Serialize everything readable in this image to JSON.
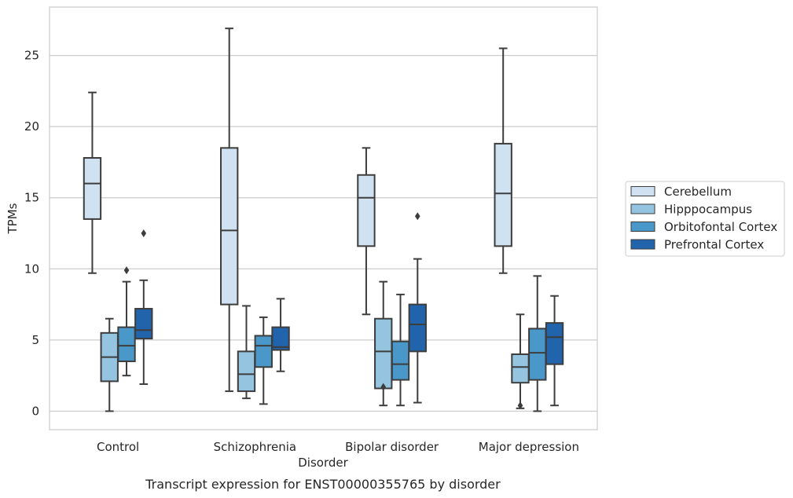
{
  "chart_data": {
    "type": "boxplot",
    "caption": "Transcript expression for ENST00000355765 by disorder",
    "xlabel": "Disorder",
    "ylabel": "TPMs",
    "ylim": [
      -1.3,
      28.4
    ],
    "yticks": [
      0,
      5,
      10,
      15,
      20,
      25
    ],
    "grid": "horizontal",
    "legend_position": "right",
    "categories": [
      "Control",
      "Schizophrenia",
      "Bipolar disorder",
      "Major depression"
    ],
    "series": [
      {
        "name": "Cerebellum",
        "color": "#d0e1f2",
        "boxes": [
          {
            "whislo": 9.7,
            "q1": 13.5,
            "med": 16.0,
            "q3": 17.8,
            "whishi": 22.4,
            "fliers": []
          },
          {
            "whislo": 1.4,
            "q1": 7.5,
            "med": 12.7,
            "q3": 18.5,
            "whishi": 26.9,
            "fliers": []
          },
          {
            "whislo": 6.8,
            "q1": 11.6,
            "med": 15.0,
            "q3": 16.6,
            "whishi": 18.5,
            "fliers": []
          },
          {
            "whislo": 9.7,
            "q1": 11.6,
            "med": 15.3,
            "q3": 18.8,
            "whishi": 25.5,
            "fliers": []
          }
        ]
      },
      {
        "name": "Hipppocampus",
        "color": "#94c4df",
        "boxes": [
          {
            "whislo": 0.0,
            "q1": 2.1,
            "med": 3.8,
            "q3": 5.5,
            "whishi": 6.5,
            "fliers": []
          },
          {
            "whislo": 0.9,
            "q1": 1.4,
            "med": 2.6,
            "q3": 4.2,
            "whishi": 7.4,
            "fliers": []
          },
          {
            "whislo": 0.4,
            "q1": 1.6,
            "med": 4.2,
            "q3": 6.5,
            "whishi": 9.1,
            "fliers": [
              1.7
            ]
          },
          {
            "whislo": 0.2,
            "q1": 2.0,
            "med": 3.1,
            "q3": 4.0,
            "whishi": 6.8,
            "fliers": [
              0.4
            ]
          }
        ]
      },
      {
        "name": "Orbitofontal Cortex",
        "color": "#4a98c9",
        "boxes": [
          {
            "whislo": 2.5,
            "q1": 3.5,
            "med": 4.6,
            "q3": 5.9,
            "whishi": 9.1,
            "fliers": [
              9.9
            ]
          },
          {
            "whislo": 0.5,
            "q1": 3.1,
            "med": 4.6,
            "q3": 5.3,
            "whishi": 6.6,
            "fliers": []
          },
          {
            "whislo": 0.4,
            "q1": 2.2,
            "med": 3.3,
            "q3": 4.9,
            "whishi": 8.2,
            "fliers": []
          },
          {
            "whislo": 0.0,
            "q1": 2.2,
            "med": 4.1,
            "q3": 5.8,
            "whishi": 9.5,
            "fliers": []
          }
        ]
      },
      {
        "name": "Prefrontal Cortex",
        "color": "#2164ab",
        "boxes": [
          {
            "whislo": 1.9,
            "q1": 5.1,
            "med": 5.7,
            "q3": 7.2,
            "whishi": 9.2,
            "fliers": [
              12.5
            ]
          },
          {
            "whislo": 2.8,
            "q1": 4.3,
            "med": 4.5,
            "q3": 5.9,
            "whishi": 7.9,
            "fliers": []
          },
          {
            "whislo": 0.6,
            "q1": 4.2,
            "med": 6.1,
            "q3": 7.5,
            "whishi": 10.7,
            "fliers": [
              13.7
            ]
          },
          {
            "whislo": 0.4,
            "q1": 3.3,
            "med": 5.2,
            "q3": 6.2,
            "whishi": 8.1,
            "fliers": []
          }
        ]
      }
    ]
  }
}
